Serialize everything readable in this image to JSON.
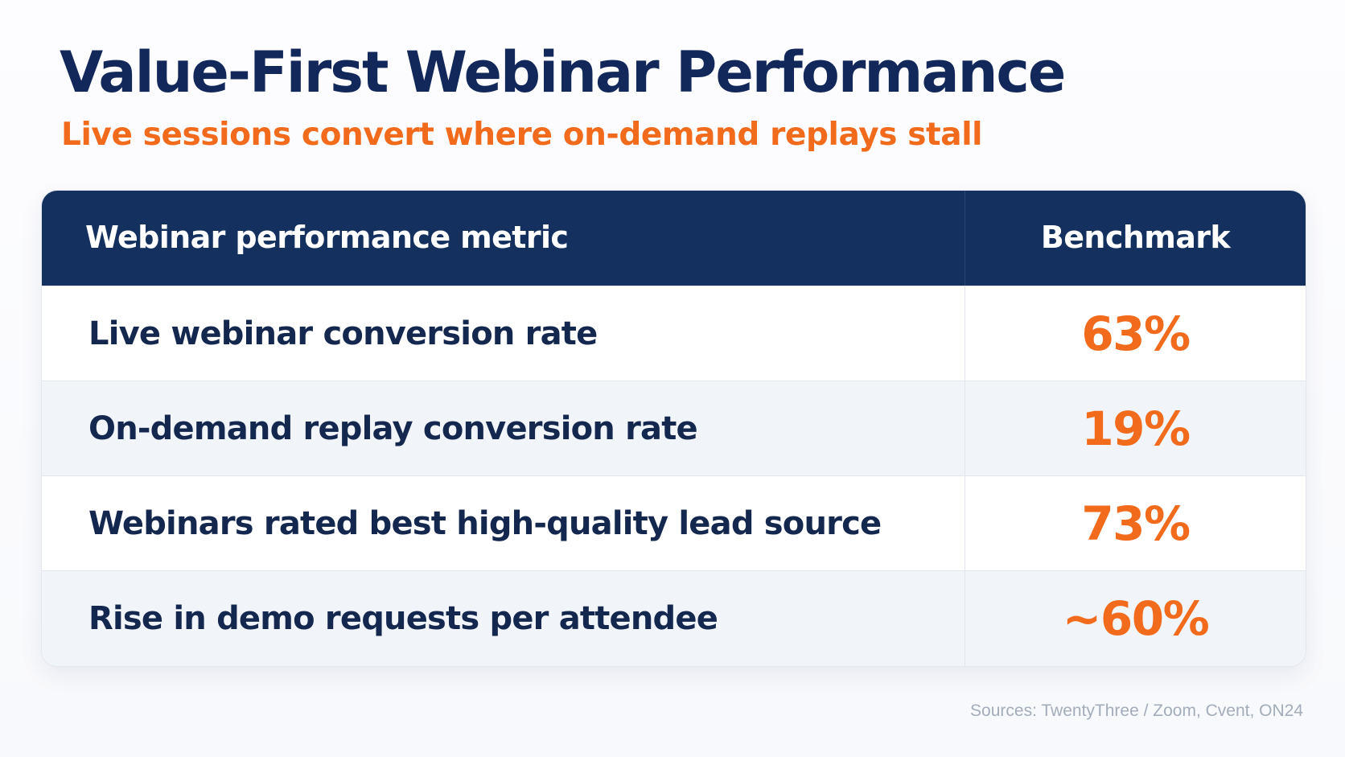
{
  "title": "Value-First Webinar Performance",
  "subtitle": "Live sessions convert where on-demand replays stall",
  "table": {
    "headers": {
      "metric": "Webinar performance metric",
      "benchmark": "Benchmark"
    },
    "rows": [
      {
        "metric": "Live webinar conversion rate",
        "benchmark": "63%"
      },
      {
        "metric": "On-demand replay conversion rate",
        "benchmark": "19%"
      },
      {
        "metric": "Webinars rated best high-quality lead source",
        "benchmark": "73%"
      },
      {
        "metric": "Rise in demo requests per attendee",
        "benchmark": "~60%"
      }
    ]
  },
  "source": "Sources: TwentyThree / Zoom, Cvent, ON24",
  "colors": {
    "title": "#12285a",
    "accent": "#f26a1b",
    "header_bg": "#14305f",
    "row_alt_bg": "#f1f4f9"
  }
}
